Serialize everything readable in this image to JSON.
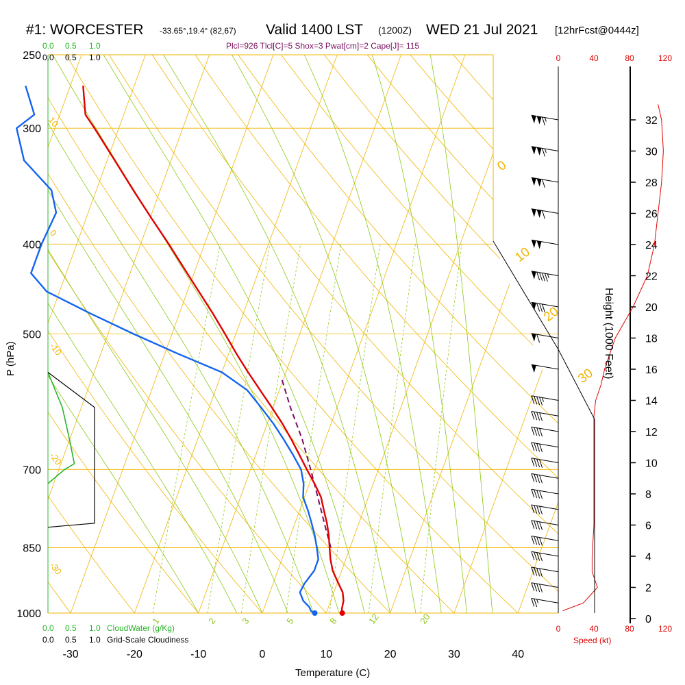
{
  "header": {
    "title": "#1: WORCESTER",
    "coords": "-33.65°,19.4° (82,67)",
    "valid": "Valid 1400 LST",
    "utc": "(1200Z)",
    "date": "WED 21 Jul 2021",
    "forecast": "[12hrFcst@0444z]",
    "indices": "Plcl=926 Tlcl[C]=5 Shox=3 Pwat[cm]=2 Cape[J]= 115"
  },
  "colors": {
    "temperature": "#e00000",
    "dewpoint": "#1464f0",
    "parcel": "#7a1060",
    "isotherm": "#f0b400",
    "dry_adiabat": "#f0b400",
    "moist_adiabat": "#8cc814",
    "mixing_ratio": "#8cc814",
    "cloudwater": "#28b428",
    "speed": "#e00000"
  },
  "chart_data": {
    "type": "skew-t",
    "xlabel": "Temperature (C)",
    "ylabel": "P (hPa)",
    "right_axis_label": "Height (1000 Feet)",
    "x_ticks": [
      "-30",
      "-20",
      "-10",
      "0",
      "10",
      "20",
      "30",
      "40"
    ],
    "pressure_levels": [
      250,
      300,
      400,
      500,
      700,
      850,
      1000
    ],
    "pressure_labels": [
      "250",
      "300",
      "400",
      "500",
      "700",
      "850",
      "1000"
    ],
    "height_ticks": [
      "0",
      "2",
      "4",
      "6",
      "8",
      "10",
      "12",
      "14",
      "16",
      "18",
      "20",
      "22",
      "24",
      "26",
      "28",
      "30",
      "32"
    ],
    "dry_adiabat_labels": [
      "0",
      "10",
      "20",
      "30"
    ],
    "mixing_ratio_labels": [
      "1",
      "2",
      "3",
      "5",
      "8",
      "12",
      "20"
    ],
    "isotherm_labels": [
      "10",
      "0",
      "-10",
      "-20",
      "-30"
    ],
    "cloudwater_axis": {
      "label": "CloudWater (g/Kg)",
      "ticks": [
        "0.0",
        "0.5",
        "1.0"
      ]
    },
    "cloudiness_axis": {
      "label": "Grid-Scale Cloudiness",
      "ticks": [
        "0.0",
        "0.5",
        "1.0"
      ]
    },
    "speed_axis": {
      "label": "Speed (kt)",
      "ticks": [
        "0",
        "40",
        "80",
        "120"
      ]
    },
    "temperature_series": [
      {
        "p": 1000,
        "t": 12.5
      },
      {
        "p": 990,
        "t": 12.2
      },
      {
        "p": 970,
        "t": 12.0
      },
      {
        "p": 950,
        "t": 11.4
      },
      {
        "p": 925,
        "t": 10.0
      },
      {
        "p": 900,
        "t": 8.6
      },
      {
        "p": 875,
        "t": 7.6
      },
      {
        "p": 850,
        "t": 6.8
      },
      {
        "p": 825,
        "t": 6.0
      },
      {
        "p": 800,
        "t": 5.0
      },
      {
        "p": 775,
        "t": 3.8
      },
      {
        "p": 750,
        "t": 2.6
      },
      {
        "p": 725,
        "t": 0.8
      },
      {
        "p": 700,
        "t": -1.2
      },
      {
        "p": 675,
        "t": -3.2
      },
      {
        "p": 650,
        "t": -5.3
      },
      {
        "p": 625,
        "t": -7.6
      },
      {
        "p": 600,
        "t": -10.2
      },
      {
        "p": 575,
        "t": -13.0
      },
      {
        "p": 550,
        "t": -15.9
      },
      {
        "p": 525,
        "t": -18.8
      },
      {
        "p": 500,
        "t": -21.7
      },
      {
        "p": 475,
        "t": -24.8
      },
      {
        "p": 450,
        "t": -28.2
      },
      {
        "p": 425,
        "t": -31.8
      },
      {
        "p": 400,
        "t": -35.6
      },
      {
        "p": 375,
        "t": -39.8
      },
      {
        "p": 350,
        "t": -44.2
      },
      {
        "p": 325,
        "t": -48.8
      },
      {
        "p": 300,
        "t": -53.8
      },
      {
        "p": 290,
        "t": -56.0
      },
      {
        "p": 270,
        "t": -58.0
      }
    ],
    "dewpoint_series": [
      {
        "p": 1000,
        "td": 8.2
      },
      {
        "p": 995,
        "td": 7.5
      },
      {
        "p": 985,
        "td": 7.0
      },
      {
        "p": 970,
        "td": 5.7
      },
      {
        "p": 950,
        "td": 4.7
      },
      {
        "p": 930,
        "td": 4.9
      },
      {
        "p": 900,
        "td": 5.7
      },
      {
        "p": 875,
        "td": 5.7
      },
      {
        "p": 850,
        "td": 4.8
      },
      {
        "p": 825,
        "td": 3.8
      },
      {
        "p": 800,
        "td": 2.6
      },
      {
        "p": 775,
        "td": 1.3
      },
      {
        "p": 750,
        "td": -0.2
      },
      {
        "p": 725,
        "td": -0.9
      },
      {
        "p": 700,
        "td": -2.1
      },
      {
        "p": 675,
        "td": -4.2
      },
      {
        "p": 650,
        "td": -6.5
      },
      {
        "p": 625,
        "td": -9.0
      },
      {
        "p": 600,
        "td": -11.9
      },
      {
        "p": 575,
        "td": -15.0
      },
      {
        "p": 550,
        "td": -20.0
      },
      {
        "p": 525,
        "td": -28.0
      },
      {
        "p": 500,
        "td": -36.0
      },
      {
        "p": 475,
        "td": -44.0
      },
      {
        "p": 450,
        "td": -52.0
      },
      {
        "p": 430,
        "td": -55.5
      },
      {
        "p": 400,
        "td": -55.5
      },
      {
        "p": 370,
        "td": -55.0
      },
      {
        "p": 350,
        "td": -57.0
      },
      {
        "p": 325,
        "td": -63.0
      },
      {
        "p": 300,
        "td": -66.0
      },
      {
        "p": 290,
        "td": -64.0
      },
      {
        "p": 270,
        "td": -67.0
      }
    ],
    "parcel_series": [
      {
        "p": 850,
        "t": 7.0
      },
      {
        "p": 800,
        "t": 4.6
      },
      {
        "p": 750,
        "t": 2.1
      },
      {
        "p": 700,
        "t": -0.6
      },
      {
        "p": 650,
        "t": -3.6
      },
      {
        "p": 600,
        "t": -7.3
      },
      {
        "p": 560,
        "t": -10.2
      }
    ],
    "cloudwater_series": [
      {
        "p": 550,
        "v": 0.0
      },
      {
        "p": 600,
        "v": 0.3
      },
      {
        "p": 650,
        "v": 0.45
      },
      {
        "p": 690,
        "v": 0.55
      },
      {
        "p": 700,
        "v": 0.35
      },
      {
        "p": 725,
        "v": 0.0
      }
    ],
    "cloudiness_series": [
      {
        "p": 550,
        "v": 0.0
      },
      {
        "p": 600,
        "v": 1.0
      },
      {
        "p": 700,
        "v": 1.0
      },
      {
        "p": 800,
        "v": 1.0
      },
      {
        "p": 808,
        "v": 0.0
      }
    ],
    "wind_speed_series": [
      {
        "h": 0.5,
        "kt": 5
      },
      {
        "h": 1.0,
        "kt": 28
      },
      {
        "h": 2.0,
        "kt": 44
      },
      {
        "h": 3.0,
        "kt": 38
      },
      {
        "h": 4.0,
        "kt": 38
      },
      {
        "h": 6.0,
        "kt": 40
      },
      {
        "h": 8.0,
        "kt": 40
      },
      {
        "h": 10.0,
        "kt": 40
      },
      {
        "h": 12.0,
        "kt": 40
      },
      {
        "h": 13.0,
        "kt": 40
      },
      {
        "h": 14.0,
        "kt": 42
      },
      {
        "h": 15.0,
        "kt": 48
      },
      {
        "h": 16.0,
        "kt": 52
      },
      {
        "h": 18.0,
        "kt": 64
      },
      {
        "h": 20.0,
        "kt": 84
      },
      {
        "h": 22.0,
        "kt": 100
      },
      {
        "h": 24.0,
        "kt": 108
      },
      {
        "h": 26.0,
        "kt": 112
      },
      {
        "h": 28.0,
        "kt": 116
      },
      {
        "h": 30.0,
        "kt": 118
      },
      {
        "h": 32.0,
        "kt": 116
      },
      {
        "h": 33.0,
        "kt": 112
      }
    ],
    "wind_barbs": [
      {
        "h": 1.0,
        "dir": 300,
        "kt": 25
      },
      {
        "h": 2.0,
        "dir": 300,
        "kt": 40
      },
      {
        "h": 3.0,
        "dir": 295,
        "kt": 40
      },
      {
        "h": 4.0,
        "dir": 290,
        "kt": 40
      },
      {
        "h": 5.0,
        "dir": 290,
        "kt": 40
      },
      {
        "h": 6.0,
        "dir": 285,
        "kt": 40
      },
      {
        "h": 7.0,
        "dir": 285,
        "kt": 40
      },
      {
        "h": 8.0,
        "dir": 285,
        "kt": 40
      },
      {
        "h": 9.0,
        "dir": 285,
        "kt": 40
      },
      {
        "h": 10.0,
        "dir": 285,
        "kt": 40
      },
      {
        "h": 11.0,
        "dir": 285,
        "kt": 40
      },
      {
        "h": 12.0,
        "dir": 285,
        "kt": 40
      },
      {
        "h": 13.0,
        "dir": 285,
        "kt": 40
      },
      {
        "h": 14.0,
        "dir": 285,
        "kt": 45
      },
      {
        "h": 16.0,
        "dir": 280,
        "kt": 50
      },
      {
        "h": 18.0,
        "dir": 280,
        "kt": 60
      },
      {
        "h": 20.0,
        "dir": 280,
        "kt": 80
      },
      {
        "h": 22.0,
        "dir": 285,
        "kt": 95
      },
      {
        "h": 24.0,
        "dir": 285,
        "kt": 100
      },
      {
        "h": 26.0,
        "dir": 290,
        "kt": 110
      },
      {
        "h": 28.0,
        "dir": 290,
        "kt": 110
      },
      {
        "h": 30.0,
        "dir": 290,
        "kt": 115
      },
      {
        "h": 32.0,
        "dir": 290,
        "kt": 115
      }
    ]
  }
}
